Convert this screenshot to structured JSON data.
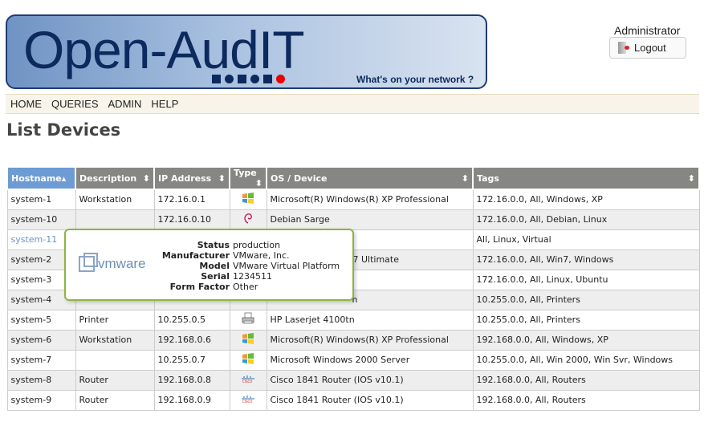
{
  "header": {
    "logo": "Open-AudIT",
    "tagline": "What's on your network ?",
    "user": "Administrator",
    "logout_label": "Logout"
  },
  "nav": [
    "HOME",
    "QUERIES",
    "ADMIN",
    "HELP"
  ],
  "page_title": "List Devices",
  "columns": [
    "Hostname",
    "Description",
    "IP Address",
    "Type",
    "OS / Device",
    "Tags"
  ],
  "sorted_column": "Hostname",
  "rows": [
    {
      "hostname": "system-1",
      "description": "Workstation",
      "ip": "172.16.0.1",
      "type": "windows-icon",
      "os": "Microsoft(R) Windows(R) XP Professional",
      "tags": "172.16.0.0, All, Windows, XP"
    },
    {
      "hostname": "system-10",
      "description": "",
      "ip": "172.16.0.10",
      "type": "debian-icon",
      "os": "Debian Sarge",
      "tags": "172.16.0.0, All, Debian, Linux"
    },
    {
      "hostname": "system-11",
      "description": "",
      "ip": "",
      "type": "",
      "os": "",
      "tags": "All, Linux, Virtual",
      "link": true
    },
    {
      "hostname": "system-2",
      "description": "",
      "ip": "",
      "type": "",
      "os": "7 Ultimate",
      "tags": "172.16.0.0, All, Win7, Windows",
      "partial": true
    },
    {
      "hostname": "system-3",
      "description": "",
      "ip": "",
      "type": "",
      "os": "",
      "tags": "172.16.0.0, All, Linux, Ubuntu"
    },
    {
      "hostname": "system-4",
      "description": "",
      "ip": "",
      "type": "",
      "os": "n",
      "tags": "10.255.0.0, All, Printers",
      "partial": true
    },
    {
      "hostname": "system-5",
      "description": "Printer",
      "ip": "10.255.0.5",
      "type": "printer-icon",
      "os": "HP Laserjet 4100tn",
      "tags": "10.255.0.0, All, Printers"
    },
    {
      "hostname": "system-6",
      "description": "Workstation",
      "ip": "192.168.0.6",
      "type": "windows-icon",
      "os": "Microsoft(R) Windows(R) XP Professional",
      "tags": "192.168.0.0, All, Windows, XP"
    },
    {
      "hostname": "system-7",
      "description": "",
      "ip": "10.255.0.7",
      "type": "windows-icon",
      "os": "Microsoft Windows 2000 Server",
      "tags": "10.255.0.0, All, Win 2000, Win Svr, Windows"
    },
    {
      "hostname": "system-8",
      "description": "Router",
      "ip": "192.168.0.8",
      "type": "cisco-icon",
      "os": "Cisco 1841 Router (IOS v10.1)",
      "tags": "192.168.0.0, All, Routers"
    },
    {
      "hostname": "system-9",
      "description": "Router",
      "ip": "192.168.0.9",
      "type": "cisco-icon",
      "os": "Cisco 1841 Router (IOS v10.1)",
      "tags": "192.168.0.0, All, Routers"
    }
  ],
  "tooltip": {
    "logo": "vmware",
    "fields": [
      {
        "k": "Status",
        "v": "production"
      },
      {
        "k": "Manufacturer",
        "v": "VMware, Inc."
      },
      {
        "k": "Model",
        "v": "VMware Virtual Platform"
      },
      {
        "k": "Serial",
        "v": "1234511"
      },
      {
        "k": "Form Factor",
        "v": "Other"
      }
    ]
  }
}
